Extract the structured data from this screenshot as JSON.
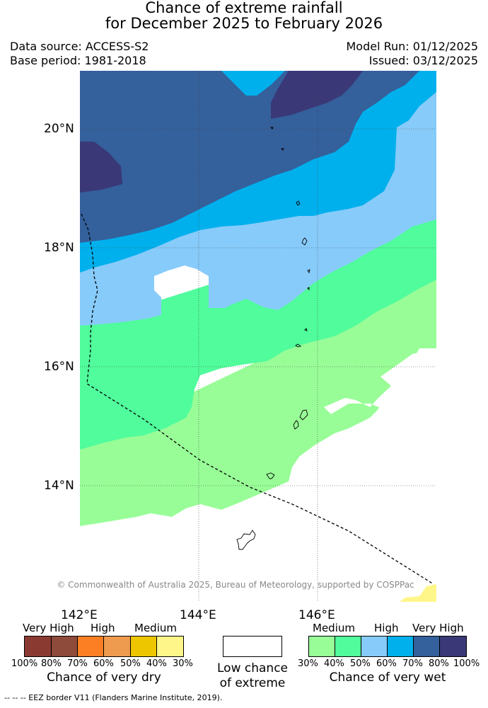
{
  "title": {
    "line1": "Chance of extreme rainfall",
    "line2": "for December 2025 to February 2026"
  },
  "info": {
    "data_source": "Data source: ACCESS-S2",
    "base_period": "Base period: 1981-2018",
    "model_run": "Model Run: 01/12/2025",
    "issued": "Issued: 03/12/2025"
  },
  "map": {
    "lat_labels": [
      "20°N",
      "18°N",
      "16°N",
      "14°N"
    ],
    "lon_labels": [
      "142°E",
      "144°E",
      "146°E"
    ],
    "copyright": "© Commonwealth of Australia 2025, Bureau of Meteorology, supported by COSPPac",
    "regions": [
      {
        "name": "very-high-wet",
        "color": "#3a3877"
      },
      {
        "name": "high-wet-80",
        "color": "#34609c"
      },
      {
        "name": "high-wet-70",
        "color": "#00b0ec"
      },
      {
        "name": "medium-wet-60",
        "color": "#87cbfa"
      },
      {
        "name": "medium-wet-50",
        "color": "#50fc9c"
      },
      {
        "name": "medium-wet-40",
        "color": "#98fd97"
      },
      {
        "name": "low-chance",
        "color": "#ffffff"
      },
      {
        "name": "medium-dry-30",
        "color": "#fff68a"
      }
    ]
  },
  "legend": {
    "dry": {
      "headers": [
        "Very High",
        "High",
        "Medium"
      ],
      "colors": [
        "#8b3a32",
        "#8e4a3a",
        "#fc7f24",
        "#ee9b4f",
        "#eec600",
        "#fff68a"
      ],
      "ticks": [
        "100%",
        "80%",
        "70%",
        "60%",
        "50%",
        "40%",
        "30%"
      ],
      "caption": "Chance of very dry"
    },
    "low": {
      "color": "#ffffff",
      "caption_line1": "Low chance",
      "caption_line2": "of extreme"
    },
    "wet": {
      "headers": [
        "Medium",
        "High",
        "Very High"
      ],
      "colors": [
        "#98fd97",
        "#50fc9c",
        "#87cbfa",
        "#00b0ec",
        "#34609c",
        "#3a3877"
      ],
      "ticks": [
        "30%",
        "40%",
        "50%",
        "60%",
        "70%",
        "80%",
        "100%"
      ],
      "caption": "Chance of very wet"
    }
  },
  "footer": {
    "eez": "--  --  -- EEZ border V11 (Flanders Marine Institute, 2019)."
  }
}
